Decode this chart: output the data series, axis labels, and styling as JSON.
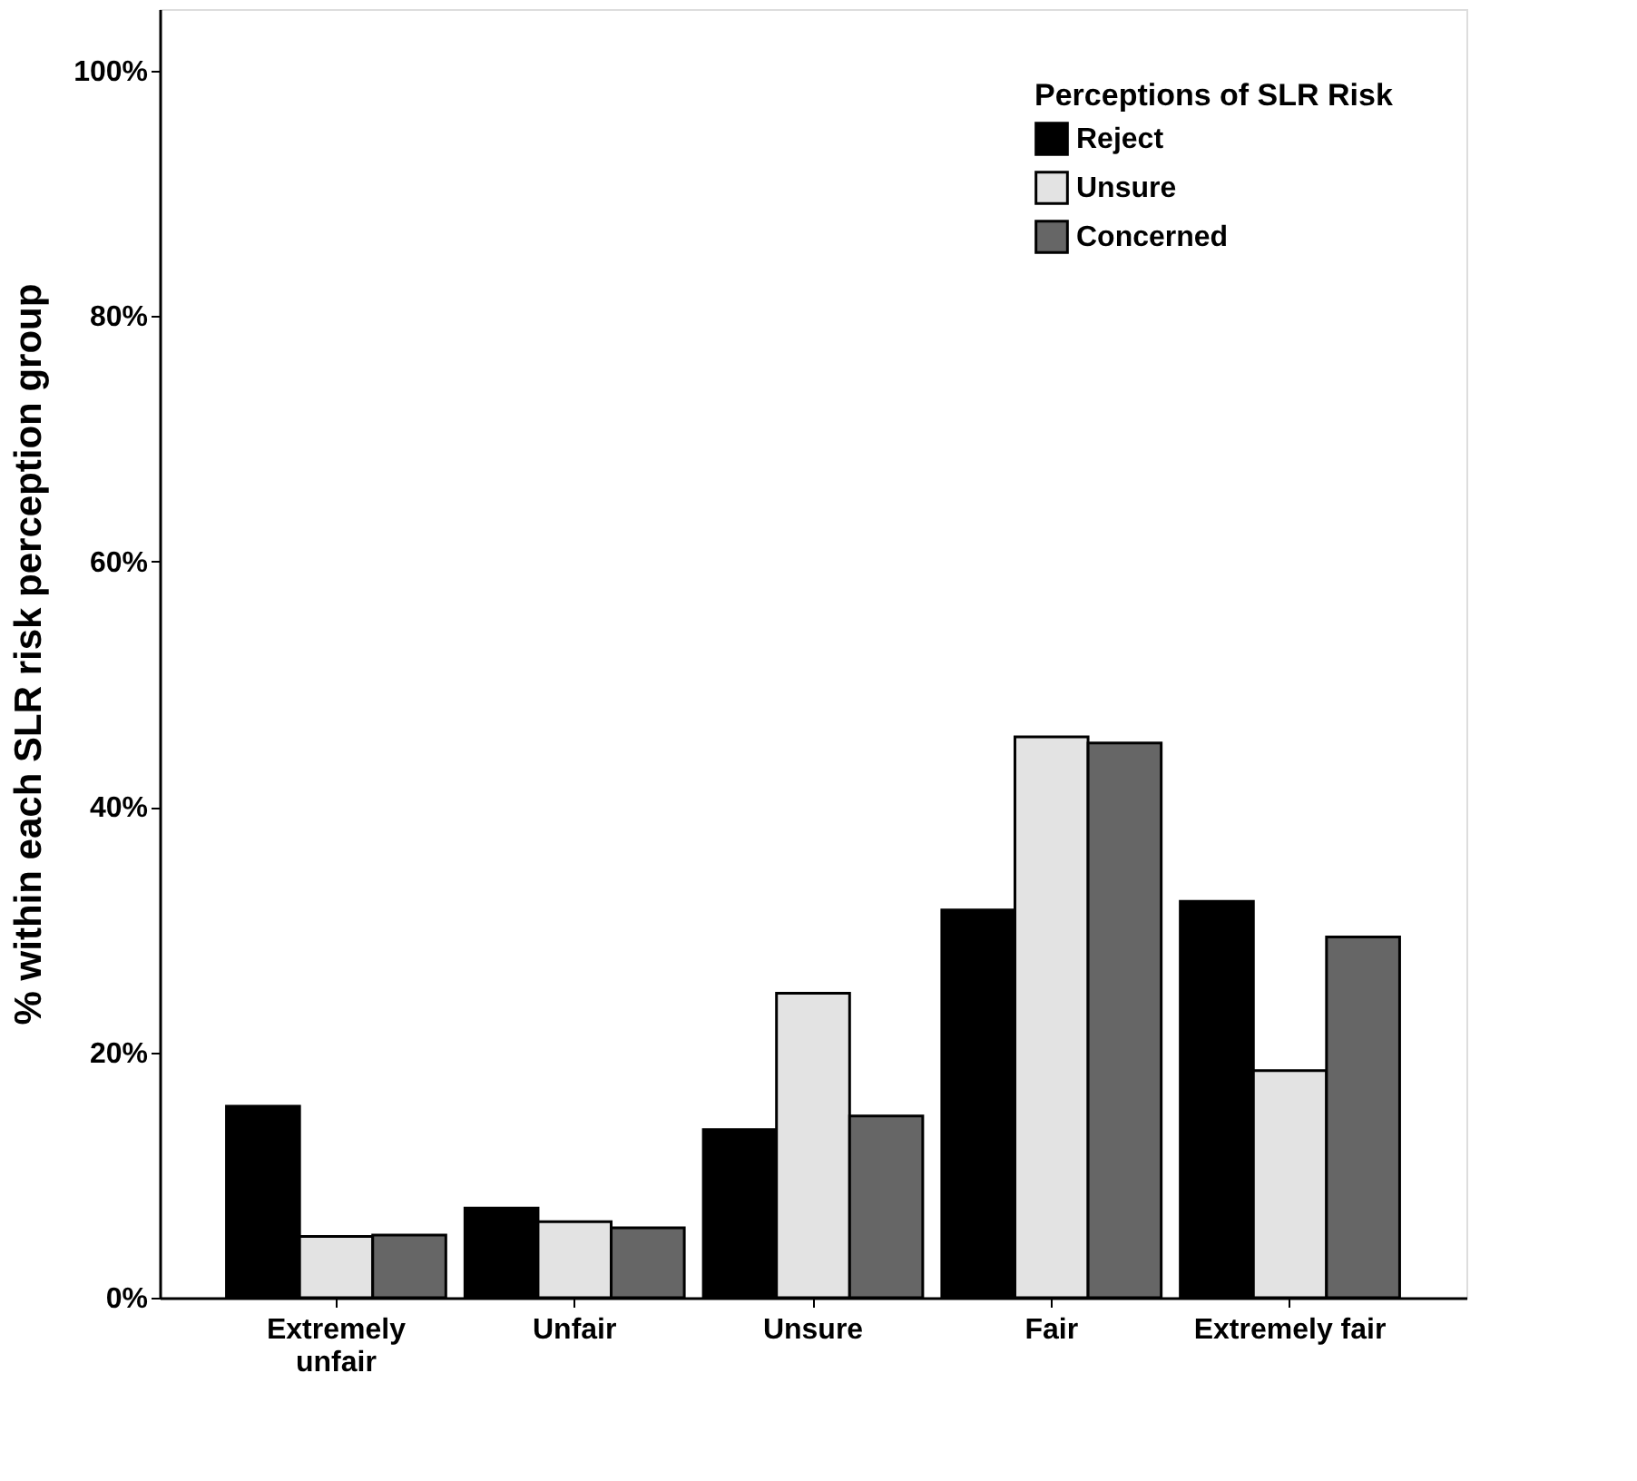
{
  "chart_data": {
    "type": "bar",
    "ylabel": "% within each SLR risk perception group",
    "legend_title": "Perceptions of SLR Risk",
    "categories": [
      "Extremely unfair",
      "Unfair",
      "Unsure",
      "Fair",
      "Extremely fair"
    ],
    "series": [
      {
        "name": "Reject",
        "color": "#000000",
        "values": [
          15.6,
          7.3,
          13.7,
          31.6,
          32.3
        ]
      },
      {
        "name": "Unsure",
        "color": "#e3e3e3",
        "values": [
          5.0,
          6.2,
          24.8,
          45.7,
          18.5
        ]
      },
      {
        "name": "Concerned",
        "color": "#666666",
        "values": [
          5.1,
          5.7,
          14.8,
          45.2,
          29.4
        ]
      }
    ],
    "ylim": [
      0,
      105
    ],
    "yticks": [
      {
        "value": 0,
        "label": "0%"
      },
      {
        "value": 20,
        "label": "20%"
      },
      {
        "value": 40,
        "label": "40%"
      },
      {
        "value": 60,
        "label": "60%"
      },
      {
        "value": 80,
        "label": "80%"
      },
      {
        "value": 100,
        "label": "100%"
      }
    ],
    "grid": false,
    "legend": "top right"
  }
}
